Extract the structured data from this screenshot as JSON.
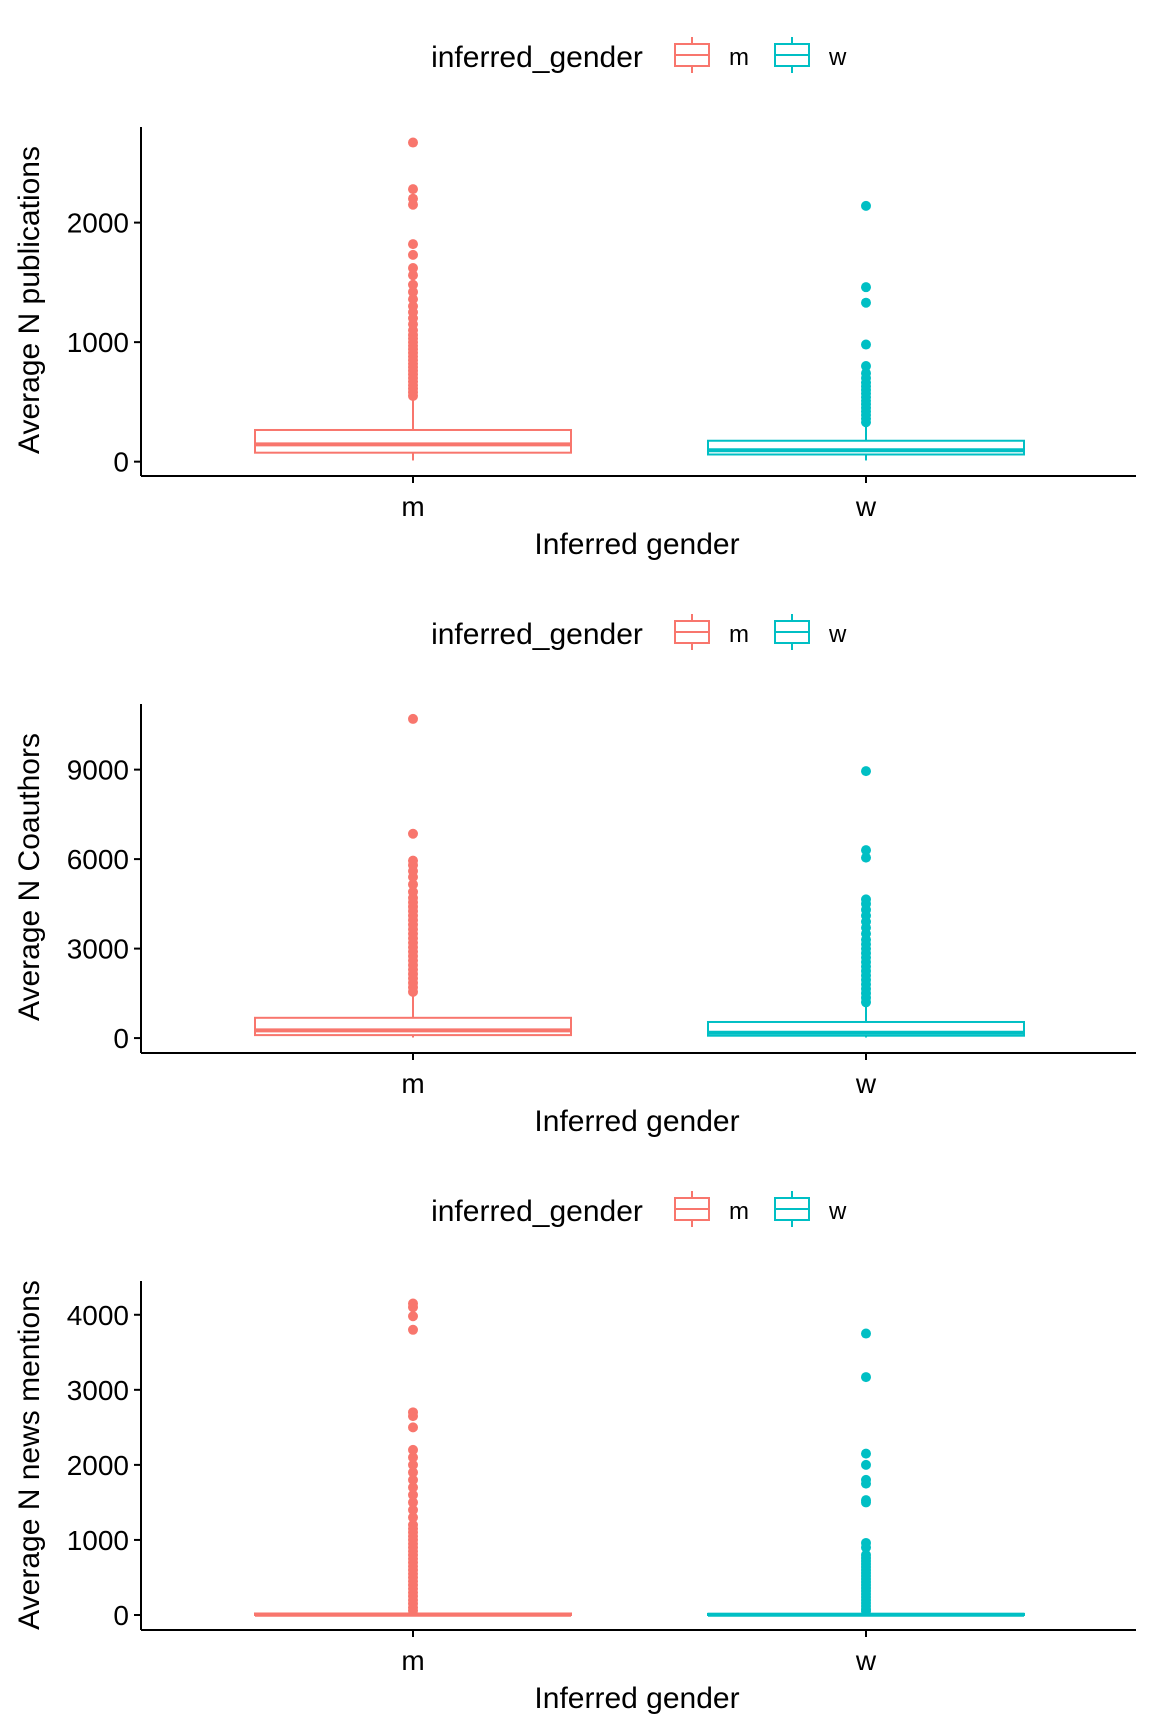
{
  "colors": {
    "m": "#F8766D",
    "w": "#00BFC4",
    "axis": "#000000"
  },
  "chart_data": [
    {
      "type": "boxplot",
      "xlabel": "Inferred gender",
      "ylabel": "Average N publications",
      "ylim": [
        -120,
        2800
      ],
      "yticks": [
        0,
        1000,
        2000
      ],
      "yticklabels": [
        "0",
        "1000",
        "2000"
      ],
      "categories": [
        "m",
        "w"
      ],
      "grid": false,
      "legend": {
        "title": "inferred_gender",
        "placement": "top",
        "entries": [
          "m",
          "w"
        ]
      },
      "boxes": [
        {
          "name": "m",
          "min": 10,
          "q1": 75,
          "median": 145,
          "q3": 265,
          "max": 540,
          "outliers": [
            550,
            580,
            610,
            640,
            670,
            700,
            730,
            760,
            790,
            820,
            850,
            880,
            910,
            940,
            970,
            1000,
            1030,
            1060,
            1100,
            1150,
            1200,
            1250,
            1300,
            1360,
            1420,
            1480,
            1560,
            1620,
            1730,
            1820,
            2150,
            2200,
            2280,
            2670
          ]
        },
        {
          "name": "w",
          "min": 10,
          "q1": 60,
          "median": 95,
          "q3": 175,
          "max": 320,
          "outliers": [
            330,
            360,
            390,
            420,
            450,
            480,
            510,
            540,
            570,
            600,
            630,
            660,
            700,
            740,
            800,
            980,
            1330,
            1460,
            2140
          ]
        }
      ]
    },
    {
      "type": "boxplot",
      "xlabel": "Inferred gender",
      "ylabel": "Average N Coauthors",
      "ylim": [
        -500,
        11200
      ],
      "yticks": [
        0,
        3000,
        6000,
        9000
      ],
      "yticklabels": [
        "0",
        "3000",
        "6000",
        "9000"
      ],
      "categories": [
        "m",
        "w"
      ],
      "grid": false,
      "legend": {
        "title": "inferred_gender",
        "placement": "top",
        "entries": [
          "m",
          "w"
        ]
      },
      "boxes": [
        {
          "name": "m",
          "min": 20,
          "q1": 100,
          "median": 260,
          "q3": 680,
          "max": 1500,
          "outliers": [
            1550,
            1700,
            1850,
            2000,
            2150,
            2300,
            2450,
            2600,
            2750,
            2900,
            3050,
            3200,
            3350,
            3500,
            3650,
            3800,
            3950,
            4100,
            4250,
            4400,
            4550,
            4700,
            4900,
            5150,
            5400,
            5600,
            5800,
            5950,
            6850,
            10700
          ]
        },
        {
          "name": "w",
          "min": 20,
          "q1": 80,
          "median": 180,
          "q3": 540,
          "max": 1150,
          "outliers": [
            1200,
            1350,
            1500,
            1650,
            1800,
            1950,
            2100,
            2250,
            2400,
            2550,
            2700,
            2850,
            3000,
            3150,
            3300,
            3500,
            3700,
            3900,
            4100,
            4300,
            4500,
            4650,
            6050,
            6300,
            8950
          ]
        }
      ]
    },
    {
      "type": "boxplot",
      "xlabel": "Inferred gender",
      "ylabel": "Average N news mentions",
      "ylim": [
        -200,
        4450
      ],
      "yticks": [
        0,
        1000,
        2000,
        3000,
        4000
      ],
      "yticklabels": [
        "0",
        "1000",
        "2000",
        "3000",
        "4000"
      ],
      "categories": [
        "m",
        "w"
      ],
      "grid": false,
      "legend": {
        "title": "inferred_gender",
        "placement": "top",
        "entries": [
          "m",
          "w"
        ]
      },
      "boxes": [
        {
          "name": "m",
          "min": 0,
          "q1": 0,
          "median": 4,
          "q3": 20,
          "max": 50,
          "outliers": [
            60,
            100,
            150,
            200,
            250,
            300,
            350,
            400,
            450,
            500,
            550,
            600,
            650,
            700,
            750,
            800,
            850,
            900,
            950,
            1000,
            1050,
            1100,
            1150,
            1200,
            1300,
            1400,
            1500,
            1600,
            1700,
            1800,
            1900,
            2000,
            2100,
            2200,
            2500,
            2650,
            2700,
            3800,
            3980,
            4100,
            4150
          ]
        },
        {
          "name": "w",
          "min": 0,
          "q1": 0,
          "median": 3,
          "q3": 15,
          "max": 40,
          "outliers": [
            50,
            80,
            120,
            160,
            200,
            240,
            280,
            320,
            360,
            400,
            440,
            480,
            520,
            560,
            600,
            640,
            680,
            720,
            760,
            800,
            900,
            960,
            1500,
            1530,
            1750,
            1800,
            2000,
            2150,
            3170,
            3750
          ]
        }
      ]
    }
  ]
}
